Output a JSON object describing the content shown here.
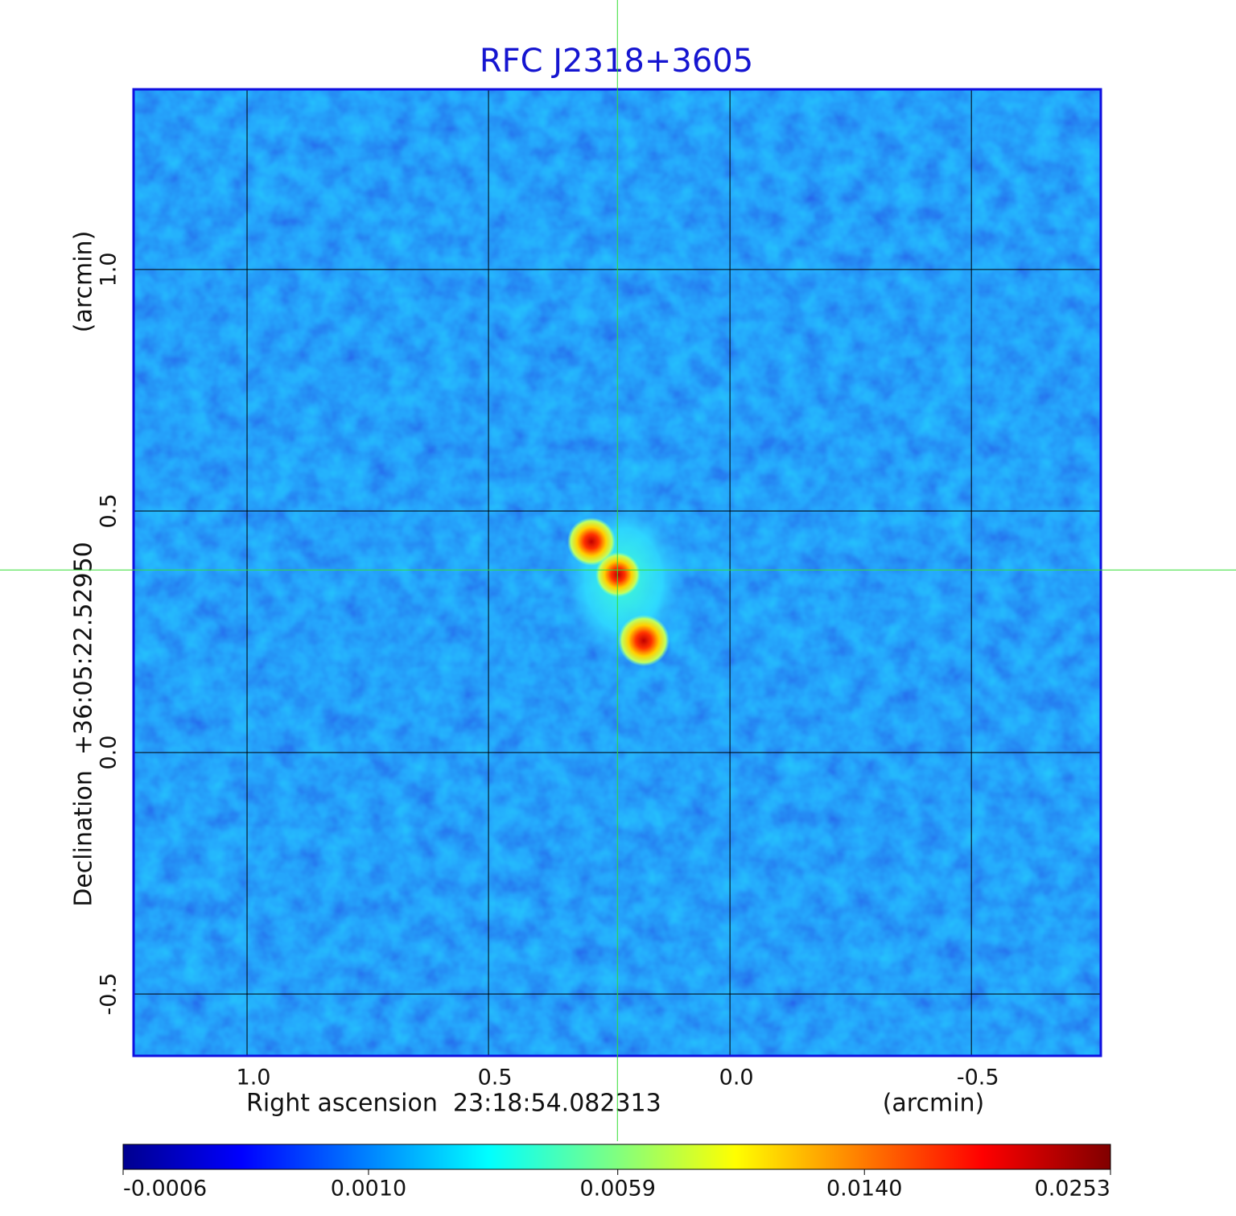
{
  "chart_data": {
    "type": "image",
    "title": "RFC J2318+3605",
    "xlabel": "Right ascension  23:18:54.082313",
    "xunit": "(arcmin)",
    "ylabel": "Declination  +36:05:22.52950",
    "yunit": "(arcmin)",
    "xlim": [
      1.235,
      -0.768
    ],
    "ylim": [
      -0.628,
      1.373
    ],
    "xticks": [
      {
        "value": 1,
        "label": "1.0"
      },
      0.5,
      {
        "value": 0,
        "label": "0.0"
      },
      -0.5
    ],
    "yticks": [
      {
        "value": 1,
        "label": "1.0"
      },
      0.5,
      {
        "value": 0,
        "label": "0.0"
      },
      -0.5
    ],
    "grid": true,
    "crosshair": {
      "x": 0.233,
      "y": 0.378,
      "color": "#33dd33"
    },
    "colorbar": {
      "scale": "sqrt",
      "lim": [
        -0.0006,
        0.0253
      ],
      "ticks": [
        -0.0006,
        {
          "value": 0.001,
          "label": "0.0010"
        },
        0.0059,
        {
          "value": 0.014,
          "label": "0.0140"
        },
        0.0253
      ]
    }
  }
}
